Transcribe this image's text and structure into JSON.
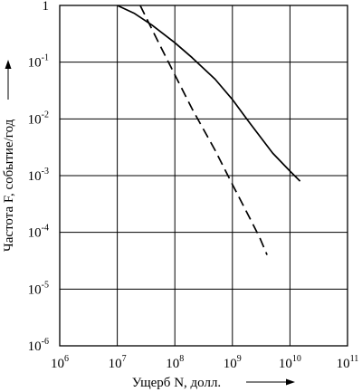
{
  "chart_data": {
    "type": "line",
    "xlabel": "Ущерб N, долл.",
    "ylabel": "Частота F, событие/год",
    "x_scale": "log",
    "y_scale": "log",
    "xlim": [
      1000000,
      100000000000
    ],
    "ylim": [
      1e-06,
      1
    ],
    "grid": true,
    "x_ticks": [
      {
        "base": "10",
        "exp": "6"
      },
      {
        "base": "10",
        "exp": "7"
      },
      {
        "base": "10",
        "exp": "8"
      },
      {
        "base": "10",
        "exp": "9"
      },
      {
        "base": "10",
        "exp": "10"
      },
      {
        "base": "10",
        "exp": "11"
      }
    ],
    "y_ticks": [
      {
        "base": "1",
        "exp": ""
      },
      {
        "base": "10",
        "exp": "-1"
      },
      {
        "base": "10",
        "exp": "-2"
      },
      {
        "base": "10",
        "exp": "-3"
      },
      {
        "base": "10",
        "exp": "-4"
      },
      {
        "base": "10",
        "exp": "-5"
      },
      {
        "base": "10",
        "exp": "-6"
      }
    ],
    "series": [
      {
        "style": "solid",
        "color": "#000000",
        "x": [
          10000000,
          20000000,
          40000000,
          100000000,
          200000000,
          500000000,
          1000000000,
          2000000000,
          5000000000,
          10000000000,
          15000000000
        ],
        "y": [
          1,
          0.72,
          0.45,
          0.22,
          0.12,
          0.05,
          0.022,
          0.0085,
          0.0025,
          0.0012,
          0.0008
        ]
      },
      {
        "style": "dashed",
        "color": "#000000",
        "x": [
          25000000,
          50000000,
          100000000,
          200000000,
          500000000,
          1000000000,
          2000000000,
          3000000000,
          4000000000
        ],
        "y": [
          1,
          0.24,
          0.06,
          0.015,
          0.0028,
          0.0007,
          0.00018,
          8e-05,
          4e-05
        ]
      }
    ]
  }
}
